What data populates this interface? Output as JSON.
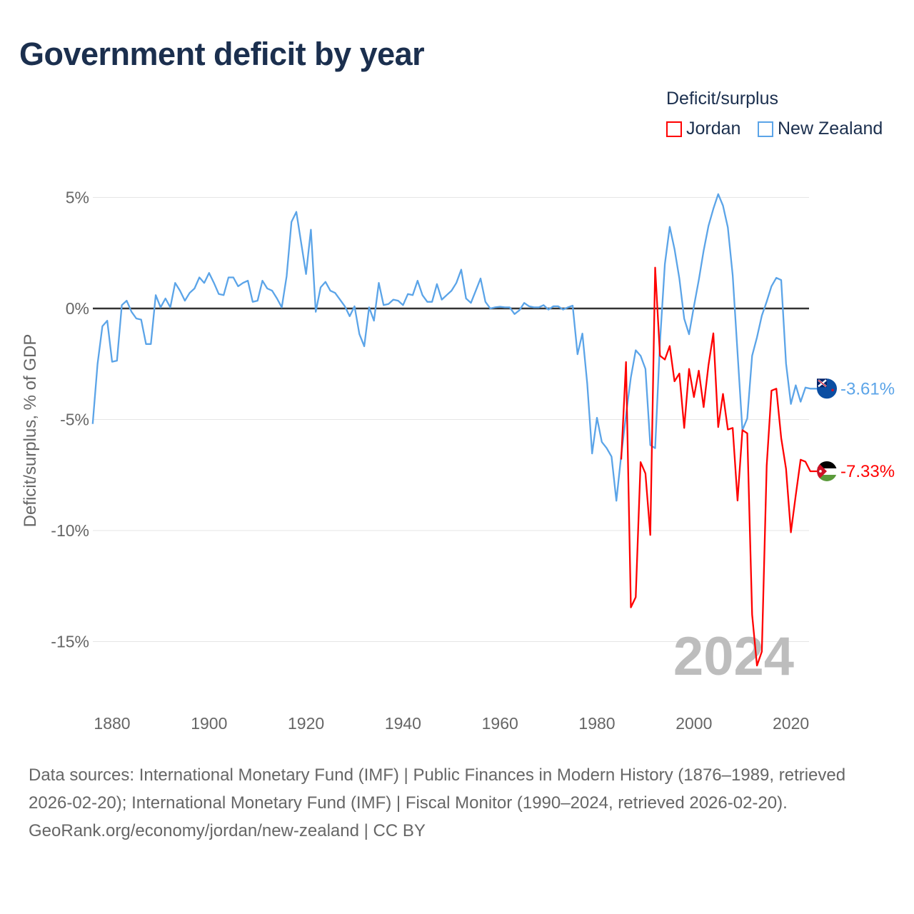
{
  "title": "Government deficit by year",
  "chart_data": {
    "type": "line",
    "title": "Government deficit by year",
    "ylabel": "Deficit/surplus, % of GDP",
    "xlabel": "",
    "xlim": [
      1876,
      2024
    ],
    "ylim": [
      -16.5,
      5.5
    ],
    "x_ticks": [
      1880,
      1900,
      1920,
      1940,
      1960,
      1980,
      2000,
      2020
    ],
    "y_ticks": [
      {
        "v": 5,
        "label": "5%"
      },
      {
        "v": 0,
        "label": "0%"
      },
      {
        "v": -5,
        "label": "-5%"
      },
      {
        "v": -10,
        "label": "-10%"
      },
      {
        "v": -15,
        "label": "-15%"
      }
    ],
    "grid": true,
    "legend_title": "Deficit/surplus",
    "legend_position": "top-right",
    "year_watermark": "2024",
    "series": [
      {
        "name": "Jordan",
        "color": "#ff0000",
        "end_label": "-7.33%",
        "flag": "jordan-flag",
        "start_year": 1985,
        "values": [
          -6.8,
          -2.41,
          -13.46,
          -13.0,
          -6.92,
          -7.43,
          -10.2,
          1.84,
          -2.13,
          -2.3,
          -1.69,
          -3.28,
          -2.93,
          -5.38,
          -2.72,
          -3.99,
          -2.8,
          -4.44,
          -2.55,
          -1.12,
          -5.34,
          -3.85,
          -5.45,
          -5.38,
          -8.65,
          -5.48,
          -5.62,
          -13.78,
          -16.08,
          -15.45,
          -7.08,
          -3.7,
          -3.61,
          -5.83,
          -7.22,
          -10.08,
          -8.41,
          -6.81,
          -6.9,
          -7.33
        ]
      },
      {
        "name": "New Zealand",
        "color": "#5ba4e8",
        "end_label": "-3.61%",
        "flag": "new-zealand-flag",
        "start_year": 1876,
        "values": [
          -5.2,
          -2.5,
          -0.8,
          -0.55,
          -2.4,
          -2.35,
          0.15,
          0.35,
          -0.15,
          -0.45,
          -0.5,
          -1.6,
          -1.6,
          0.6,
          0.05,
          0.45,
          0.05,
          1.15,
          0.8,
          0.35,
          0.7,
          0.9,
          1.4,
          1.15,
          1.6,
          1.15,
          0.65,
          0.6,
          1.4,
          1.4,
          1.0,
          1.15,
          1.25,
          0.3,
          0.35,
          1.25,
          0.9,
          0.8,
          0.45,
          0.05,
          1.45,
          3.9,
          4.35,
          2.95,
          1.55,
          3.55,
          -0.15,
          0.95,
          1.2,
          0.8,
          0.7,
          0.4,
          0.1,
          -0.35,
          0.1,
          -1.15,
          -1.7,
          0.05,
          -0.55,
          1.15,
          0.15,
          0.2,
          0.4,
          0.35,
          0.15,
          0.65,
          0.6,
          1.25,
          0.6,
          0.3,
          0.3,
          1.1,
          0.4,
          0.6,
          0.8,
          1.15,
          1.75,
          0.45,
          0.25,
          0.8,
          1.35,
          0.3,
          0,
          0.05,
          0.08,
          0.05,
          0.05,
          -0.25,
          -0.08,
          0.25,
          0.1,
          0.05,
          0.05,
          0.15,
          -0.05,
          0.1,
          0.1,
          -0.05,
          0.05,
          0.13,
          -2.06,
          -1.13,
          -3.39,
          -6.53,
          -4.92,
          -6.01,
          -6.29,
          -6.67,
          -8.66,
          -6.6,
          -4.8,
          -3.1,
          -1.88,
          -2.13,
          -2.72,
          -6.15,
          -6.29,
          -1.5,
          2.0,
          3.68,
          2.68,
          1.35,
          -0.46,
          -1.16,
          0.1,
          1.28,
          2.6,
          3.72,
          4.49,
          5.15,
          4.63,
          3.65,
          1.49,
          -2.0,
          -5.48,
          -4.95,
          -2.13,
          -1.3,
          -0.32,
          0.31,
          1.0,
          1.38,
          1.28,
          -2.48,
          -4.3,
          -3.46,
          -4.2,
          -3.56,
          -3.61
        ]
      }
    ]
  },
  "sources": {
    "line1": "Data sources: International Monetary Fund (IMF) | Public Finances in Modern History (1876–1989, retrieved 2026-02-20); International Monetary Fund (IMF) | Fiscal Monitor (1990–2024, retrieved 2026-02-20).",
    "line2": "GeoRank.org/economy/jordan/new-zealand | CC BY"
  }
}
